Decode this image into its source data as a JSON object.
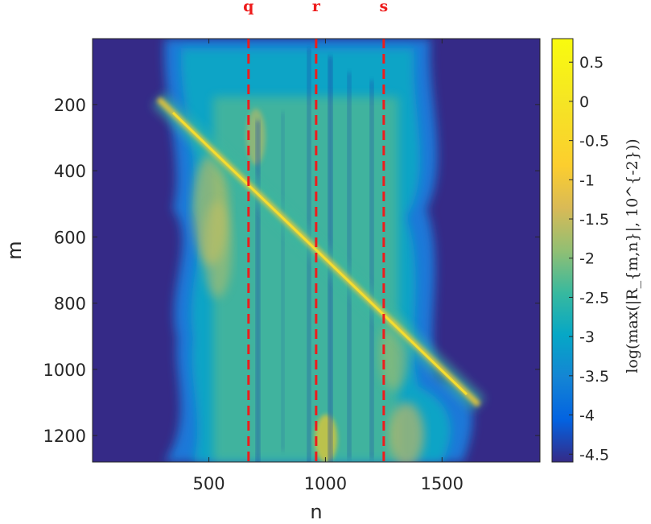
{
  "chart_data": {
    "type": "heatmap",
    "title": "",
    "xlabel": "n",
    "ylabel": "m",
    "colorbar_label": "log(max(|R_{m,n}|, 10^{-2}))",
    "xlim": [
      1,
      1920
    ],
    "ylim": [
      1,
      1280
    ],
    "y_direction": "reversed",
    "xticks": [
      500,
      1000,
      1500
    ],
    "yticks": [
      200,
      400,
      600,
      800,
      1000,
      1200
    ],
    "clim": [
      -4.6,
      0.8
    ],
    "cticks": [
      "0.5",
      "0",
      "-0.5",
      "-1",
      "-1.5",
      "-2",
      "-2.5",
      "-3",
      "-3.5",
      "-4",
      "-4.5"
    ],
    "colormap": "parula",
    "vertical_markers": [
      {
        "label": "q",
        "n": 670
      },
      {
        "label": "r",
        "n": 960
      },
      {
        "label": "s",
        "n": 1250
      }
    ],
    "marker_color": "#ee1c1c"
  }
}
